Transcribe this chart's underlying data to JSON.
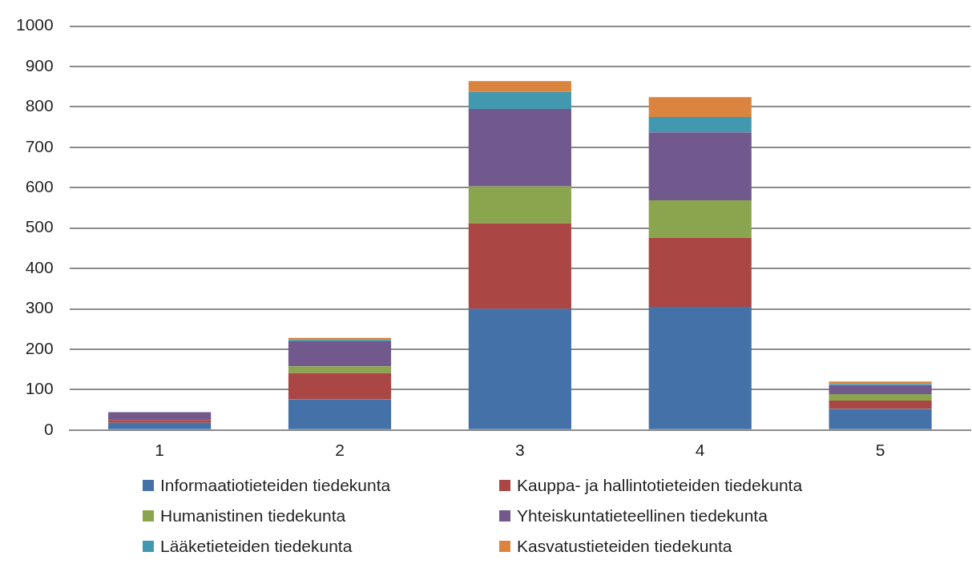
{
  "chart_data": {
    "type": "bar",
    "stacked": true,
    "categories": [
      "1",
      "2",
      "3",
      "4",
      "5"
    ],
    "series": [
      {
        "name": "Informaatiotieteiden tiedekunta",
        "color": "#4472a8",
        "values": [
          18,
          76,
          300,
          305,
          52
        ]
      },
      {
        "name": "Kauppa- ja hallintotieteiden tiedekunta",
        "color": "#aa4745",
        "values": [
          7,
          65,
          212,
          171,
          21
        ]
      },
      {
        "name": "Humanistinen tiedekunta",
        "color": "#8aa54e",
        "values": [
          0,
          17,
          91,
          93,
          16
        ]
      },
      {
        "name": "Yhteiskuntatieteellinen tiedekunta",
        "color": "#71598d",
        "values": [
          19,
          62,
          192,
          168,
          22
        ]
      },
      {
        "name": "Lääketieteiden tiedekunta",
        "color": "#4298ae",
        "values": [
          0,
          3,
          42,
          38,
          3
        ]
      },
      {
        "name": "Kasvatustieteiden tiedekunta",
        "color": "#da843f",
        "values": [
          0,
          5,
          27,
          49,
          6
        ]
      }
    ],
    "ylim": [
      0,
      1000
    ],
    "yticks": [
      0,
      100,
      200,
      300,
      400,
      500,
      600,
      700,
      800,
      900,
      1000
    ],
    "grid": "y",
    "legend": "bottom"
  }
}
